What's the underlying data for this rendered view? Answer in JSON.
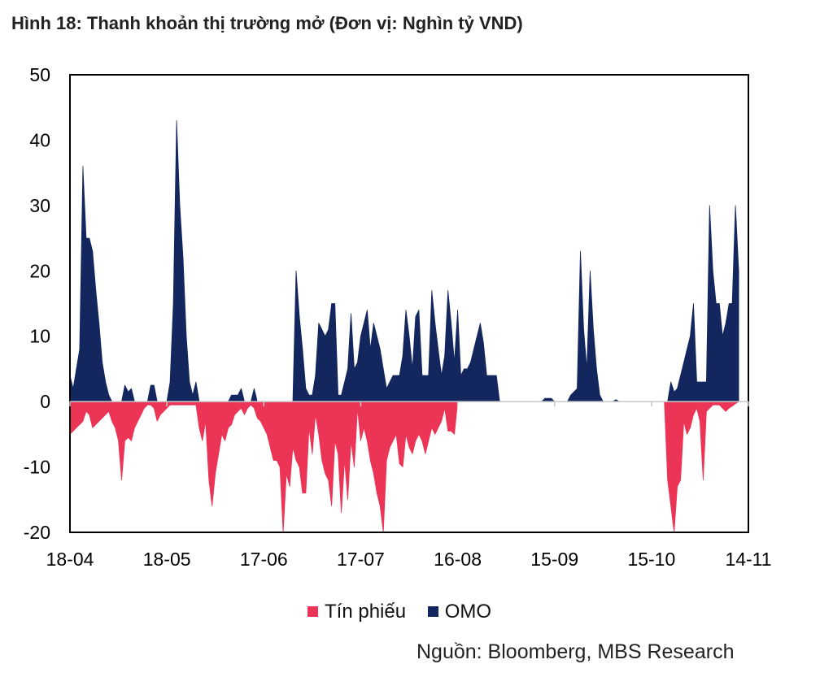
{
  "title": "Hình 18: Thanh khoản thị trường mở (Đơn vị: Nghìn tỷ VND)",
  "source": "Nguồn: Bloomberg, MBS Research",
  "colors": {
    "omo": "#13275e",
    "tin_phieu": "#ec3456",
    "frame": "#000000"
  },
  "chart_data": {
    "type": "area",
    "title": "Hình 18: Thanh khoản thị trường mở (Đơn vị: Nghìn tỷ VND)",
    "xlabel": "",
    "ylabel": "",
    "ylim": [
      -20,
      50
    ],
    "yticks": [
      50,
      40,
      30,
      20,
      10,
      0,
      -10,
      -20
    ],
    "x_range": [
      0,
      210
    ],
    "x_ticks": [
      {
        "label": "18-04",
        "x": 0
      },
      {
        "label": "18-05",
        "x": 30
      },
      {
        "label": "17-06",
        "x": 60
      },
      {
        "label": "17-07",
        "x": 90
      },
      {
        "label": "16-08",
        "x": 120
      },
      {
        "label": "15-09",
        "x": 150
      },
      {
        "label": "15-10",
        "x": 180
      },
      {
        "label": "14-11",
        "x": 210
      }
    ],
    "legend": [
      {
        "name": "Tín phiếu",
        "color": "#ec3456"
      },
      {
        "name": "OMO",
        "color": "#13275e"
      }
    ],
    "series": [
      {
        "name": "OMO",
        "color": "#13275e",
        "points": [
          [
            0,
            4
          ],
          [
            1,
            2
          ],
          [
            2,
            5
          ],
          [
            3,
            8
          ],
          [
            4,
            36
          ],
          [
            5,
            25
          ],
          [
            6,
            25
          ],
          [
            7,
            23
          ],
          [
            8,
            17
          ],
          [
            9,
            12
          ],
          [
            10,
            6
          ],
          [
            11,
            3
          ],
          [
            12,
            1
          ],
          [
            13,
            0
          ],
          [
            16,
            0
          ],
          [
            17,
            2.5
          ],
          [
            18,
            1.5
          ],
          [
            19,
            2
          ],
          [
            20,
            0
          ],
          [
            24,
            0
          ],
          [
            25,
            2.5
          ],
          [
            26,
            2.5
          ],
          [
            27,
            0
          ],
          [
            30,
            0
          ],
          [
            31,
            3
          ],
          [
            32,
            15
          ],
          [
            33,
            43
          ],
          [
            34,
            30
          ],
          [
            35,
            22
          ],
          [
            36,
            10
          ],
          [
            37,
            3
          ],
          [
            38,
            1
          ],
          [
            39,
            3
          ],
          [
            40,
            0
          ],
          [
            49,
            0
          ],
          [
            50,
            1
          ],
          [
            51,
            1
          ],
          [
            52,
            1
          ],
          [
            53,
            2
          ],
          [
            54,
            0
          ],
          [
            56,
            0
          ],
          [
            57,
            2
          ],
          [
            58,
            0
          ],
          [
            69,
            0
          ],
          [
            70,
            20
          ],
          [
            71,
            13
          ],
          [
            72,
            8
          ],
          [
            73,
            2
          ],
          [
            74,
            1
          ],
          [
            75,
            1
          ],
          [
            76,
            4
          ],
          [
            77,
            12
          ],
          [
            78,
            11
          ],
          [
            79,
            10
          ],
          [
            80,
            11
          ],
          [
            81,
            15
          ],
          [
            82,
            15
          ],
          [
            83,
            1
          ],
          [
            84,
            1
          ],
          [
            85,
            3
          ],
          [
            86,
            5
          ],
          [
            87,
            13.5
          ],
          [
            88,
            5
          ],
          [
            89,
            6
          ],
          [
            90,
            10
          ],
          [
            91,
            12
          ],
          [
            92,
            14
          ],
          [
            93,
            8
          ],
          [
            94,
            12
          ],
          [
            95,
            10
          ],
          [
            96,
            8
          ],
          [
            97,
            5
          ],
          [
            98,
            2
          ],
          [
            99,
            3
          ],
          [
            100,
            4
          ],
          [
            101,
            4
          ],
          [
            102,
            4
          ],
          [
            103,
            7
          ],
          [
            104,
            14
          ],
          [
            105,
            10
          ],
          [
            106,
            5
          ],
          [
            107,
            13
          ],
          [
            108,
            14
          ],
          [
            109,
            4
          ],
          [
            110,
            4
          ],
          [
            111,
            4
          ],
          [
            112,
            17
          ],
          [
            113,
            12
          ],
          [
            114,
            8
          ],
          [
            115,
            4
          ],
          [
            116,
            7
          ],
          [
            117,
            17
          ],
          [
            118,
            12
          ],
          [
            119,
            6
          ],
          [
            120,
            14
          ],
          [
            121,
            4
          ],
          [
            122,
            5
          ],
          [
            123,
            5
          ],
          [
            124,
            6
          ],
          [
            125,
            8
          ],
          [
            126,
            10
          ],
          [
            127,
            12
          ],
          [
            128,
            9
          ],
          [
            129,
            4
          ],
          [
            130,
            4
          ],
          [
            131,
            4
          ],
          [
            132,
            4
          ],
          [
            133,
            0
          ],
          [
            146,
            0
          ],
          [
            147,
            0.5
          ],
          [
            148,
            0.5
          ],
          [
            149,
            0.5
          ],
          [
            150,
            0
          ],
          [
            154,
            0
          ],
          [
            155,
            1
          ],
          [
            156,
            1.5
          ],
          [
            157,
            2
          ],
          [
            158,
            23
          ],
          [
            159,
            11
          ],
          [
            160,
            5
          ],
          [
            161,
            20
          ],
          [
            162,
            11
          ],
          [
            163,
            5
          ],
          [
            164,
            1
          ],
          [
            165,
            0
          ],
          [
            168,
            0
          ],
          [
            169,
            0.3
          ],
          [
            170,
            0
          ],
          [
            185,
            0
          ],
          [
            186,
            3
          ],
          [
            187,
            1.5
          ],
          [
            188,
            2
          ],
          [
            189,
            4
          ],
          [
            190,
            6
          ],
          [
            191,
            8
          ],
          [
            192,
            10
          ],
          [
            193,
            15
          ],
          [
            194,
            3
          ],
          [
            195,
            3
          ],
          [
            196,
            3
          ],
          [
            197,
            3
          ],
          [
            198,
            30
          ],
          [
            199,
            20
          ],
          [
            200,
            15
          ],
          [
            201,
            15
          ],
          [
            202,
            10
          ],
          [
            203,
            12
          ],
          [
            204,
            15
          ],
          [
            205,
            15
          ],
          [
            206,
            30
          ],
          [
            207,
            20
          ]
        ]
      },
      {
        "name": "Tín phiếu",
        "color": "#ec3456",
        "points": [
          [
            0,
            -5
          ],
          [
            1,
            -4.5
          ],
          [
            2,
            -4
          ],
          [
            3,
            -3.5
          ],
          [
            4,
            -3
          ],
          [
            5,
            -1.5
          ],
          [
            6,
            -2
          ],
          [
            7,
            -4
          ],
          [
            8,
            -3.5
          ],
          [
            9,
            -3
          ],
          [
            10,
            -2.5
          ],
          [
            11,
            -2
          ],
          [
            12,
            -1.5
          ],
          [
            13,
            -3
          ],
          [
            14,
            -4
          ],
          [
            15,
            -6
          ],
          [
            16,
            -12
          ],
          [
            17,
            -6
          ],
          [
            18,
            -5.5
          ],
          [
            19,
            -6
          ],
          [
            20,
            -4
          ],
          [
            21,
            -3
          ],
          [
            22,
            -2
          ],
          [
            23,
            -1
          ],
          [
            24,
            -0.5
          ],
          [
            25,
            -0.5
          ],
          [
            26,
            -1
          ],
          [
            27,
            -3
          ],
          [
            28,
            -2
          ],
          [
            29,
            -1.5
          ],
          [
            30,
            -1
          ],
          [
            31,
            -0.5
          ],
          [
            39,
            -0.5
          ],
          [
            40,
            -4
          ],
          [
            41,
            -6
          ],
          [
            42,
            -3
          ],
          [
            43,
            -12
          ],
          [
            44,
            -16
          ],
          [
            45,
            -11
          ],
          [
            46,
            -8
          ],
          [
            47,
            -5
          ],
          [
            48,
            -6
          ],
          [
            49,
            -4
          ],
          [
            50,
            -3.5
          ],
          [
            51,
            -2
          ],
          [
            52,
            -1.5
          ],
          [
            53,
            -1
          ],
          [
            54,
            -2
          ],
          [
            55,
            -1
          ],
          [
            56,
            -0.5
          ],
          [
            57,
            -1
          ],
          [
            58,
            -2.5
          ],
          [
            59,
            -3
          ],
          [
            60,
            -4
          ],
          [
            61,
            -5
          ],
          [
            62,
            -7
          ],
          [
            63,
            -9
          ],
          [
            64,
            -9
          ],
          [
            65,
            -10
          ],
          [
            66,
            -20
          ],
          [
            67,
            -11
          ],
          [
            68,
            -13
          ],
          [
            69,
            -7
          ],
          [
            70,
            -9
          ],
          [
            71,
            -10
          ],
          [
            72,
            -14
          ],
          [
            73,
            -14
          ],
          [
            74,
            -4
          ],
          [
            75,
            -8
          ],
          [
            76,
            -2
          ],
          [
            77,
            -5
          ],
          [
            78,
            -9
          ],
          [
            79,
            -11
          ],
          [
            80,
            -12
          ],
          [
            81,
            -16
          ],
          [
            82,
            -6
          ],
          [
            83,
            -8
          ],
          [
            84,
            -17
          ],
          [
            85,
            -9
          ],
          [
            86,
            -15
          ],
          [
            87,
            -6
          ],
          [
            88,
            -10
          ],
          [
            89,
            -1
          ],
          [
            90,
            -6
          ],
          [
            91,
            -4
          ],
          [
            92,
            -6
          ],
          [
            93,
            -9
          ],
          [
            94,
            -11
          ],
          [
            95,
            -14
          ],
          [
            96,
            -16
          ],
          [
            97,
            -20
          ],
          [
            98,
            -9
          ],
          [
            99,
            -7
          ],
          [
            100,
            -6
          ],
          [
            101,
            -5
          ],
          [
            102,
            -9.5
          ],
          [
            103,
            -10
          ],
          [
            104,
            -5
          ],
          [
            105,
            -7
          ],
          [
            106,
            -8
          ],
          [
            107,
            -6
          ],
          [
            108,
            -5
          ],
          [
            109,
            -6
          ],
          [
            110,
            -8
          ],
          [
            111,
            -6
          ],
          [
            112,
            -4
          ],
          [
            113,
            -5
          ],
          [
            114,
            -4
          ],
          [
            115,
            -3
          ],
          [
            116,
            -1
          ],
          [
            117,
            -4.5
          ],
          [
            118,
            -4.5
          ],
          [
            119,
            -5
          ],
          [
            120,
            0
          ],
          [
            184,
            0
          ],
          [
            185,
            -12
          ],
          [
            186,
            -16
          ],
          [
            187,
            -20
          ],
          [
            188,
            -13
          ],
          [
            189,
            -12
          ],
          [
            190,
            -3
          ],
          [
            191,
            -5
          ],
          [
            192,
            -4
          ],
          [
            193,
            -2
          ],
          [
            194,
            -1
          ],
          [
            195,
            -3
          ],
          [
            196,
            -12
          ],
          [
            197,
            -1.5
          ],
          [
            198,
            -1
          ],
          [
            199,
            -0.5
          ],
          [
            200,
            -0.5
          ],
          [
            201,
            -0.5
          ],
          [
            202,
            -1
          ],
          [
            203,
            -1.5
          ],
          [
            204,
            -1
          ],
          [
            205,
            -0.7
          ],
          [
            206,
            -0.3
          ],
          [
            207,
            0
          ]
        ]
      }
    ]
  }
}
